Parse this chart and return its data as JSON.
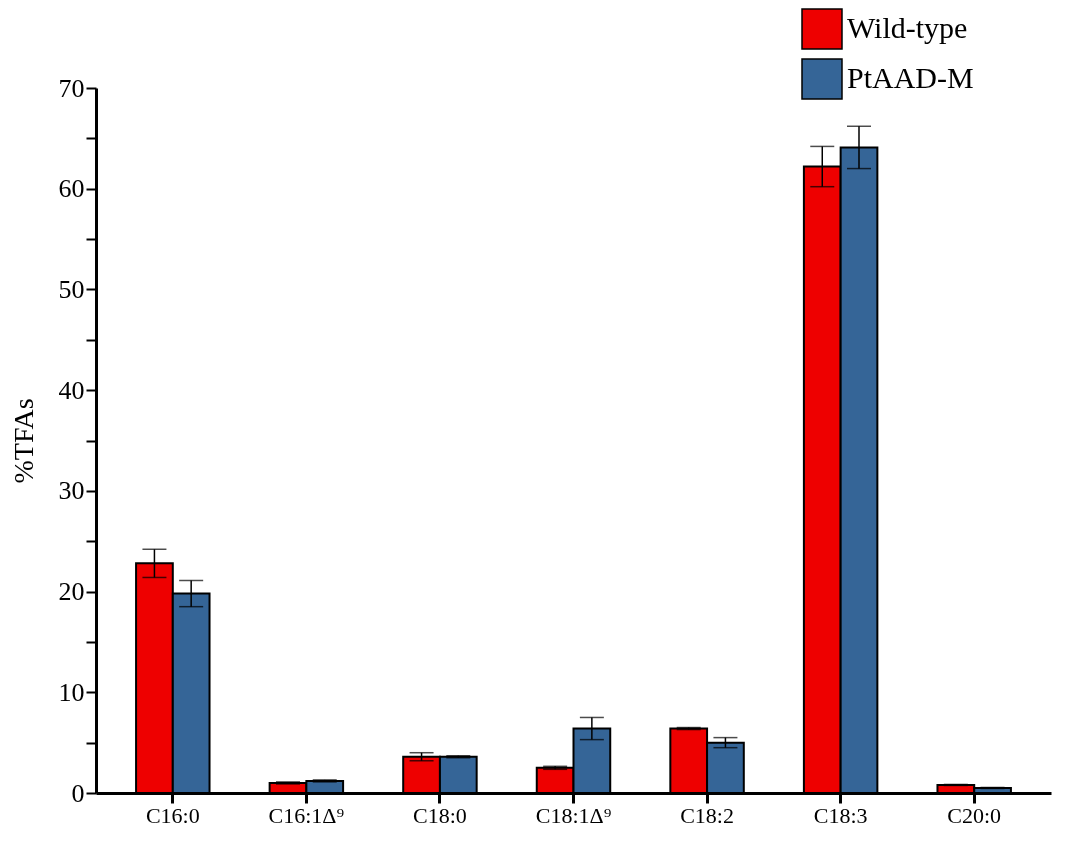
{
  "chart_data": {
    "type": "bar",
    "ylabel": "%TFAs",
    "categories": [
      "C16:0",
      "C16:1Δ⁹",
      "C18:0",
      "C18:1Δ⁹",
      "C18:2",
      "C18:3",
      "C20:0"
    ],
    "series": [
      {
        "name": "Wild-type",
        "color": "#ee0000",
        "values": [
          22.8,
          1.0,
          3.6,
          2.5,
          6.4,
          62.2,
          0.8
        ],
        "errors": [
          1.4,
          0.1,
          0.4,
          0.15,
          0.1,
          2.0,
          0.05
        ]
      },
      {
        "name": "PtAAD-M",
        "color": "#356597",
        "values": [
          19.8,
          1.2,
          3.6,
          6.4,
          5.0,
          64.1,
          0.5
        ],
        "errors": [
          1.3,
          0.1,
          0.1,
          1.1,
          0.5,
          2.1,
          0.05
        ]
      }
    ],
    "ylim": [
      0,
      70
    ],
    "yticks": [
      0,
      {
        "value": 5,
        "label": null
      },
      10,
      {
        "value": 15,
        "label": null
      },
      20,
      {
        "value": 25,
        "label": null
      },
      30,
      {
        "value": 35,
        "label": null
      },
      40,
      {
        "value": 45,
        "label": null
      },
      50,
      {
        "value": 55,
        "label": null
      },
      60,
      {
        "value": 65,
        "label": null
      },
      70
    ],
    "legend": "top right",
    "grid": false
  }
}
